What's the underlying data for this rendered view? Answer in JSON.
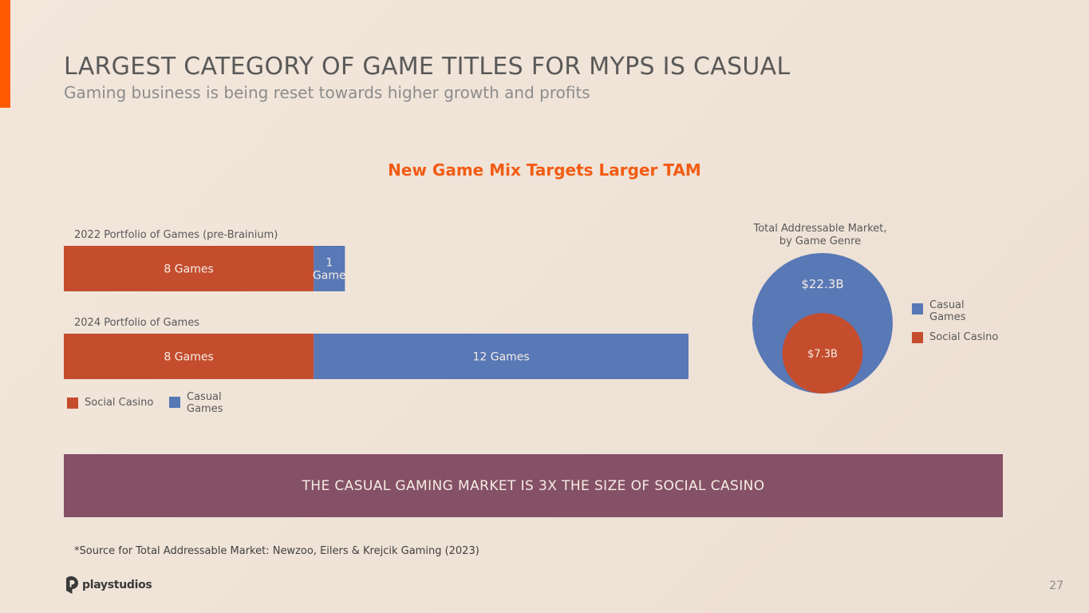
{
  "slide": {
    "title": "LARGEST CATEGORY OF GAME TITLES FOR MYPS IS CASUAL",
    "subtitle": "Gaming business is being reset towards higher growth and profits",
    "chart_heading": "New Game Mix Targets Larger TAM",
    "banner": "THE CASUAL GAMING MARKET IS 3X THE SIZE OF SOCIAL CASINO",
    "source_note": "*Source for Total Addressable Market:  Newzoo, Eilers & Krejcik Gaming (2023)",
    "logo_text": "playstudios",
    "page_number": "27"
  },
  "colors": {
    "social_casino": "#c44d2e",
    "casual_games": "#5878b6",
    "banner": "#855166",
    "accent": "#ff5a00",
    "heading": "#f25c14"
  },
  "chart_data": [
    {
      "type": "bar",
      "orientation": "horizontal",
      "stacked": true,
      "categories": [
        "2022 Portfolio of Games (pre-Brainium)",
        "2024 Portfolio of Games"
      ],
      "series": [
        {
          "name": "Social Casino",
          "values": [
            8,
            8
          ],
          "labels": [
            "8 Games",
            "8 Games"
          ]
        },
        {
          "name": "Casual Games",
          "values": [
            1,
            12
          ],
          "labels": [
            "1\nGame",
            "12 Games"
          ]
        }
      ],
      "legend": [
        "Social Casino",
        "Casual Games"
      ],
      "legend_position": "bottom-left"
    },
    {
      "type": "nested-circles",
      "title": "Total Addressable Market,\nby Game Genre",
      "series": [
        {
          "name": "Casual Games",
          "value": 22.3,
          "label": "$22.3B"
        },
        {
          "name": "Social Casino",
          "value": 7.3,
          "label": "$7.3B"
        }
      ],
      "legend": [
        "Casual Games",
        "Social Casino"
      ],
      "legend_position": "right"
    }
  ]
}
